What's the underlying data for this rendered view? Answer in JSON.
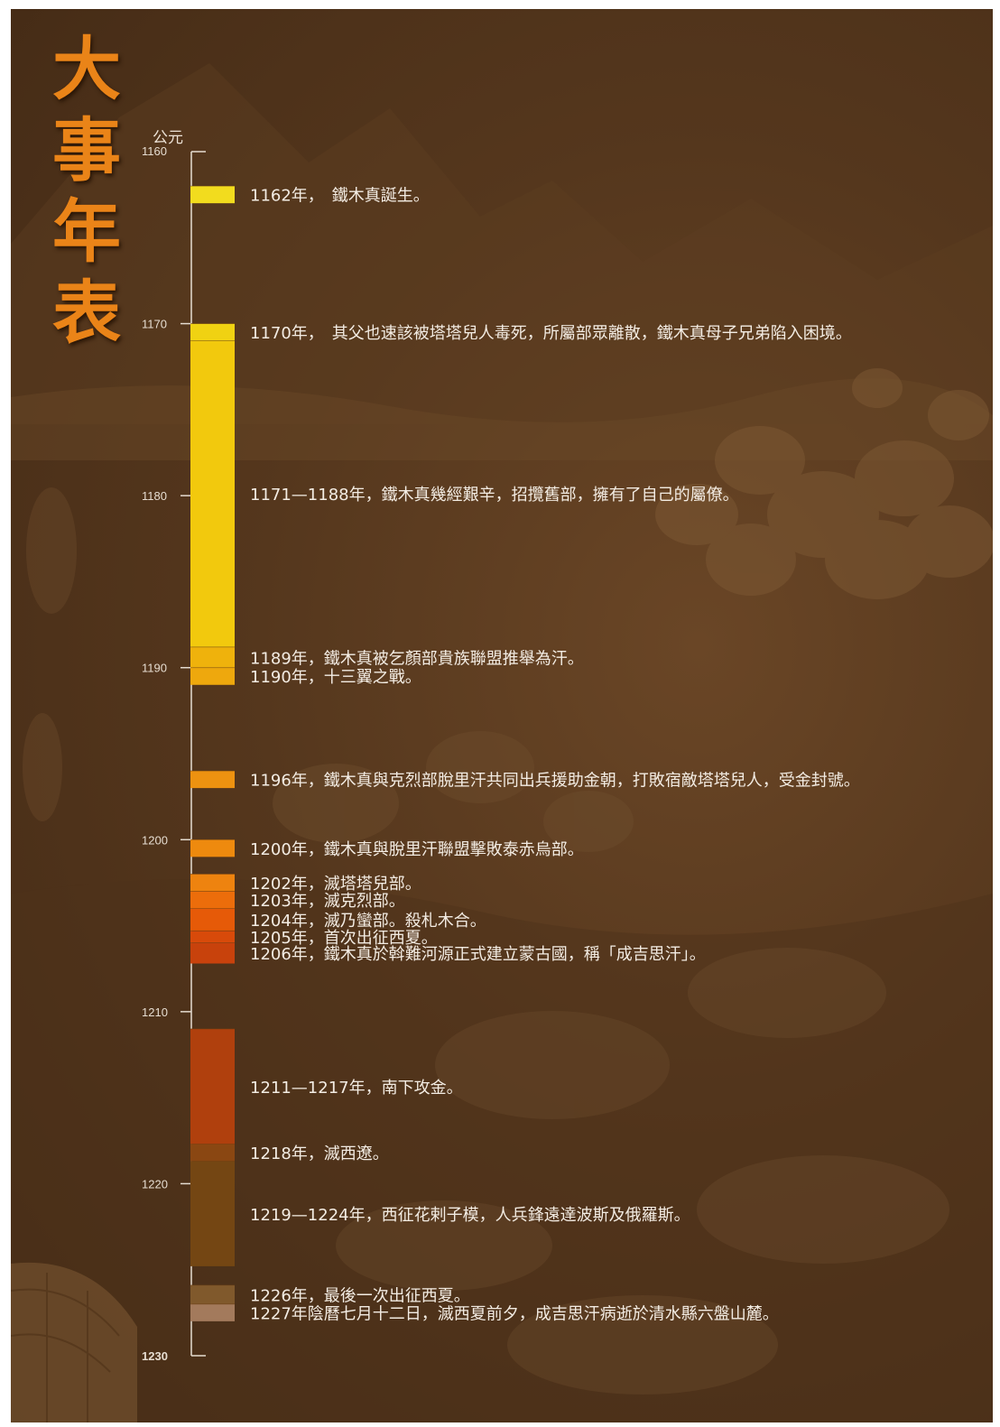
{
  "title_chars": [
    "大",
    "事",
    "年",
    "表"
  ],
  "era_label": "公元",
  "chart_data": {
    "type": "timeline",
    "axis": {
      "min": 1160,
      "max": 1230,
      "ticks": [
        "1160",
        "1170",
        "1180",
        "1190",
        "1200",
        "1210",
        "1220",
        "1230"
      ]
    },
    "events": [
      {
        "start": 1162,
        "end": 1163,
        "color": "#f2dc1e",
        "text": "1162年，　鐵木真誕生。"
      },
      {
        "start": 1170,
        "end": 1171,
        "color": "#f0d212",
        "text": "1170年，　其父也速該被塔塔兒人毒死，所屬部眾離散，鐵木真母子兄弟陷入困境。"
      },
      {
        "start": 1171,
        "end": 1188.8,
        "color": "#f2c90d",
        "text": "1171—1188年，鐵木真幾經艱辛，招攬舊部，擁有了自己的屬僚。"
      },
      {
        "start": 1188.8,
        "end": 1190,
        "color": "#efb20c",
        "text": "1189年，鐵木真被乞顏部貴族聯盟推舉為汗。"
      },
      {
        "start": 1190,
        "end": 1191,
        "color": "#eea80d",
        "text": "1190年，十三翼之戰。"
      },
      {
        "start": 1196,
        "end": 1197,
        "color": "#ed9210",
        "text": "1196年，鐵木真與克烈部脫里汗共同出兵援助金朝，打敗宿敵塔塔兒人，受金封號。"
      },
      {
        "start": 1200,
        "end": 1201,
        "color": "#ee8a0e",
        "text": "1200年，鐵木真與脫里汗聯盟擊敗泰赤烏部。"
      },
      {
        "start": 1202,
        "end": 1203,
        "color": "#ee830f",
        "text": "1202年，滅塔塔兒部。"
      },
      {
        "start": 1203,
        "end": 1204,
        "color": "#ec6d0b",
        "text": "1203年，滅克烈部。"
      },
      {
        "start": 1204,
        "end": 1205.3,
        "color": "#e65a08",
        "text": "1204年，滅乃蠻部。殺札木合。"
      },
      {
        "start": 1205.3,
        "end": 1206,
        "color": "#d84a0a",
        "text": "1205年，首次出征西夏。"
      },
      {
        "start": 1206,
        "end": 1207.2,
        "color": "#c8420c",
        "text": "1206年，鐵木真於斡難河源正式建立蒙古國，稱「成吉思汗」。"
      },
      {
        "start": 1211,
        "end": 1217.7,
        "color": "#b0400d",
        "text": "1211—1217年，南下攻金。"
      },
      {
        "start": 1217.7,
        "end": 1218.7,
        "color": "#8a4712",
        "text": "1218年，滅西遼。"
      },
      {
        "start": 1218.7,
        "end": 1224.8,
        "color": "#744613",
        "text": "1219—1224年，西征花剌子模，人兵鋒遠達波斯及俄羅斯。"
      },
      {
        "start": 1225.9,
        "end": 1227,
        "color": "#80592c",
        "text": "1226年，最後一次出征西夏。"
      },
      {
        "start": 1227,
        "end": 1228,
        "color": "#a37a5c",
        "text": "1227年陰曆七月十二日，滅西夏前夕，成吉思汗病逝於清水縣六盤山麓。"
      }
    ]
  }
}
